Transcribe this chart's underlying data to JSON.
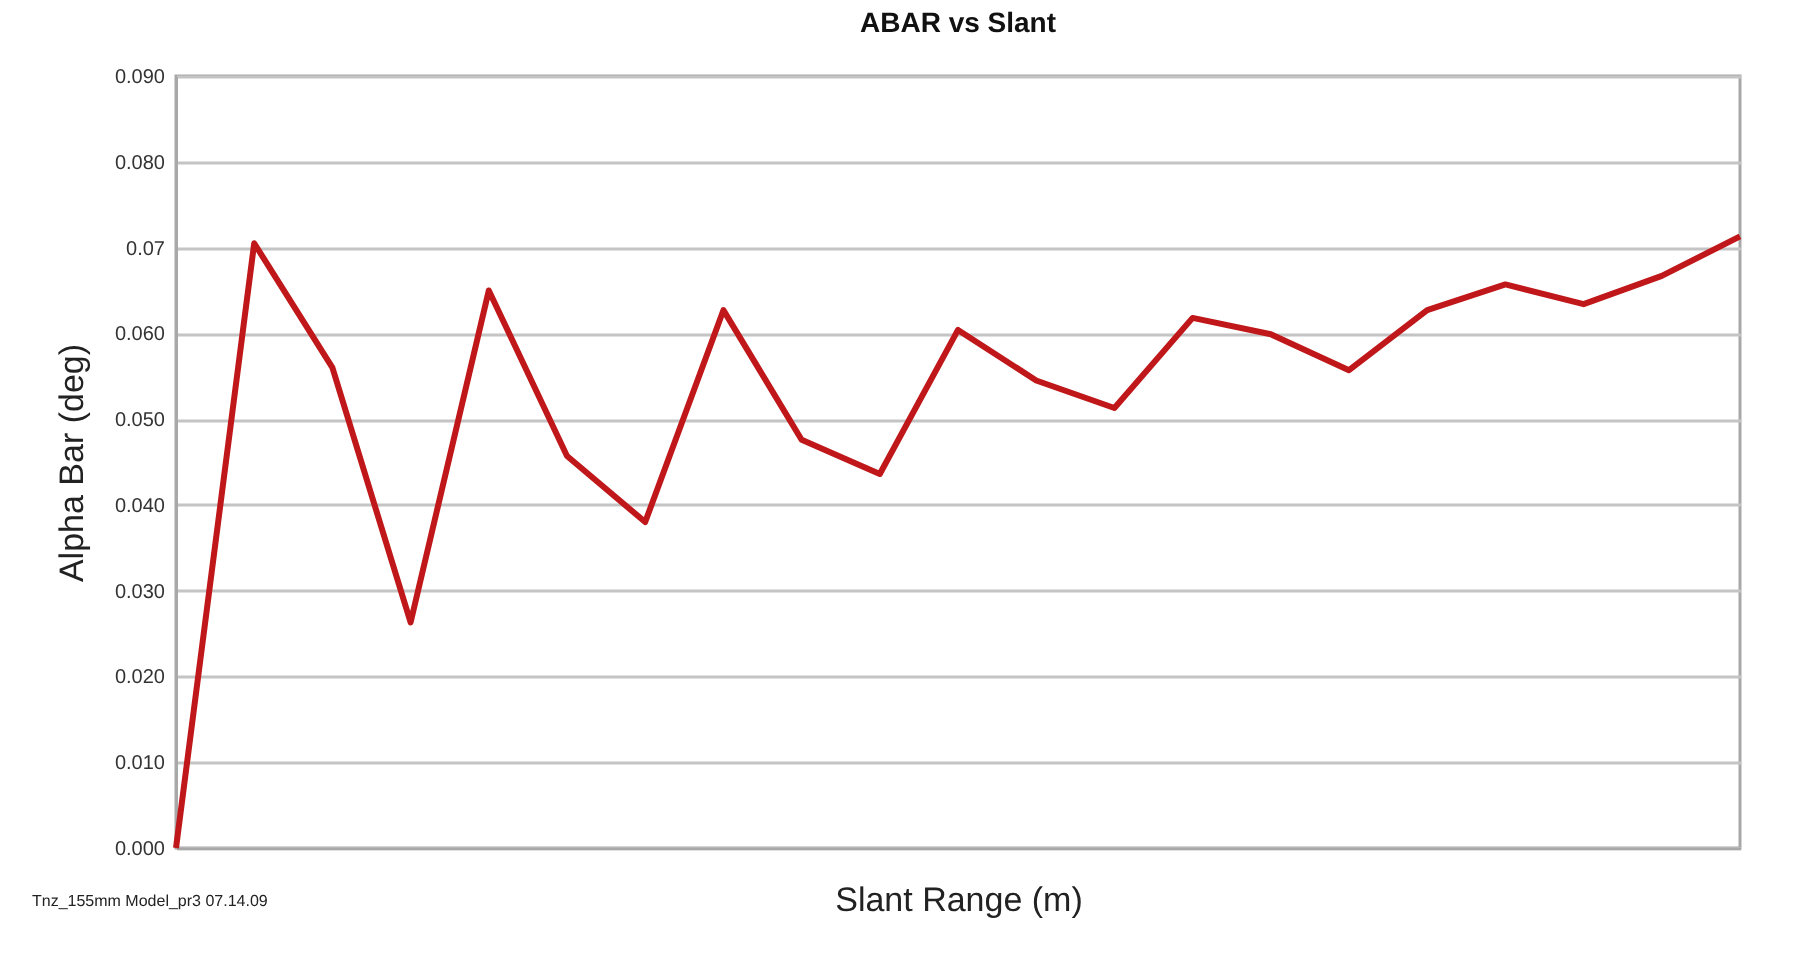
{
  "chart_data": {
    "type": "line",
    "title": "ABAR vs Slant",
    "xlabel": "Slant Range (m)",
    "ylabel": "Alpha Bar (deg)",
    "annotations": [
      "Tnz_155mm Model_pr3  07.14.09"
    ],
    "categories": [
      null,
      null,
      null,
      null,
      null,
      null,
      null,
      null,
      null,
      null,
      null,
      null,
      null,
      null,
      null,
      null,
      null,
      null,
      null,
      null,
      null
    ],
    "series": [
      {
        "color": "#c0181a",
        "values": [
          0.0,
          0.0705,
          0.056,
          0.0263,
          0.065,
          0.0457,
          0.038,
          0.0627,
          0.0476,
          0.0436,
          0.0604,
          0.0545,
          0.0513,
          0.0618,
          0.0599,
          0.0557,
          0.0627,
          0.0657,
          0.0634,
          0.0667,
          0.0713
        ]
      }
    ],
    "ylim": [
      0,
      0.09
    ],
    "yticks": [
      {
        "value": 0,
        "label": "0.000"
      },
      {
        "value": 0.01,
        "label": "0.010"
      },
      {
        "value": 0.02,
        "label": "0.020"
      },
      {
        "value": 0.03,
        "label": "0.030"
      },
      {
        "value": 0.04,
        "label": "0.040"
      },
      {
        "value": 0.05,
        "label": "0.050"
      },
      {
        "value": 0.06,
        "label": "0.060"
      },
      0.07,
      {
        "value": 0.08,
        "label": "0.080"
      },
      {
        "value": 0.09,
        "label": "0.090"
      }
    ],
    "grid": "y",
    "tick_labels": "y",
    "marker": "none",
    "line_style": "solid"
  }
}
